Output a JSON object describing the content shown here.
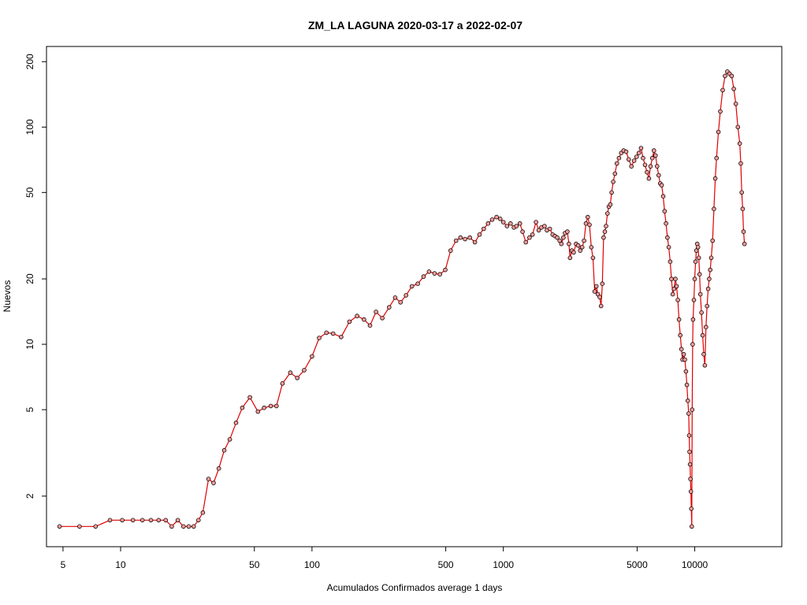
{
  "chart_data": {
    "type": "line",
    "title": "ZM_LA LAGUNA 2020-03-17 a 2022-02-07",
    "xlabel": "Acumulados Confirmados average  1  days",
    "ylabel": "Nuevos",
    "xscale": "log",
    "yscale": "log",
    "xlim": [
      4.1,
      28500
    ],
    "ylim": [
      1.17,
      235
    ],
    "x_ticks": [
      5,
      10,
      50,
      100,
      500,
      1000,
      5000,
      10000
    ],
    "x_tick_labels": [
      "5",
      "10",
      "50",
      "100",
      "500",
      "1000",
      "5000",
      "10000"
    ],
    "y_ticks": [
      2,
      5,
      10,
      20,
      50,
      100,
      200
    ],
    "y_tick_labels": [
      "2",
      "5",
      "10",
      "20",
      "50",
      "100",
      "200"
    ],
    "line_color": "#e00000",
    "point_fill": "#ff9c9c",
    "point_stroke": "#000000",
    "series": [
      {
        "x": [
          4.8,
          6.1,
          7.4,
          8.8,
          10.2,
          11.6,
          13.0,
          14.4,
          15.8,
          17.2,
          18.5,
          19.9,
          21.3,
          22.7,
          24.1,
          25.5,
          26.9,
          28.8,
          30.6,
          32.6,
          34.8,
          37.2,
          40.1,
          43.2,
          47.4,
          52.2,
          56.2,
          60.9,
          65.2,
          70.1,
          77.1,
          83.8,
          91.1,
          100.0,
          109.0,
          119.0,
          129.0,
          142.0,
          157.0,
          172.0,
          187.0,
          201.0,
          216.0,
          233.0,
          253.0,
          272.0,
          290.0,
          310.0,
          333.0,
          357.0,
          383.0,
          409.0,
          437.0,
          466.0,
          497.0,
          530.0,
          566.0,
          597.0,
          631.0,
          668.0,
          710.0,
          750.0,
          790.0,
          832.0,
          874.0,
          922.0,
          963.0,
          1000.0,
          1045.0,
          1090.0,
          1135.0,
          1170.0,
          1220.0,
          1260.0,
          1310.0,
          1370.0,
          1420.0,
          1480.0,
          1530.0,
          1580.0,
          1640.0,
          1690.0,
          1750.0,
          1810.0,
          1860.0,
          1910.0,
          1970.0,
          2010.0,
          2060.0,
          2100.0,
          2160.0,
          2200.0,
          2230.0,
          2280.0,
          2330.0,
          2400.0,
          2460.0,
          2520.0,
          2580.0,
          2640.0,
          2700.0,
          2760.0,
          2820.0,
          2880.0,
          2940.0,
          3000.0,
          3060.0,
          3120.0,
          3190.0,
          3240.0,
          3290.0,
          3340.0,
          3390.0,
          3440.0,
          3500.0,
          3560.0,
          3620.0,
          3680.0,
          3750.0,
          3830.0,
          3920.0,
          4020.0,
          4130.0,
          4250.0,
          4380.0,
          4520.0,
          4670.0,
          4820.0,
          4970.0,
          5110.0,
          5240.0,
          5370.0,
          5500.0,
          5630.0,
          5760.0,
          5880.0,
          6000.0,
          6120.0,
          6240.0,
          6360.0,
          6480.0,
          6600.0,
          6720.0,
          6840.0,
          6960.0,
          7080.0,
          7200.0,
          7320.0,
          7440.0,
          7560.0,
          7680.0,
          7800.0,
          7920.0,
          8040.0,
          8160.0,
          8280.0,
          8400.0,
          8520.0,
          8640.0,
          8760.0,
          8880.0,
          9000.0,
          9100.0,
          9200.0,
          9300.0,
          9350.0,
          9400.0,
          9450.0,
          9500.0,
          9550.0,
          9600.0,
          9650.0,
          9700.0,
          9750.0,
          9800.0,
          9900.0,
          10000.0,
          10100.0,
          10200.0,
          10300.0,
          10400.0,
          10500.0,
          10600.0,
          10700.0,
          10850.0,
          11000.0,
          11150.0,
          11300.0,
          11450.0,
          11600.0,
          11750.0,
          11900.0,
          12050.0,
          12200.0,
          12400.0,
          12600.0,
          12800.0,
          13000.0,
          13300.0,
          13600.0,
          14000.0,
          14400.0,
          14800.0,
          15200.0,
          15600.0,
          16000.0,
          16400.0,
          16800.0,
          17200.0,
          17400.0,
          17600.0,
          17800.0,
          18000.0,
          18200.0
        ],
        "y": [
          1.45,
          1.45,
          1.45,
          1.55,
          1.55,
          1.55,
          1.55,
          1.55,
          1.55,
          1.55,
          1.45,
          1.55,
          1.45,
          1.45,
          1.45,
          1.55,
          1.68,
          2.4,
          2.3,
          2.68,
          3.25,
          3.65,
          4.35,
          5.1,
          5.7,
          4.9,
          5.1,
          5.2,
          5.2,
          6.6,
          7.4,
          7.0,
          7.6,
          8.8,
          10.7,
          11.3,
          11.2,
          10.8,
          12.7,
          13.5,
          13.0,
          12.2,
          14.1,
          13.2,
          14.8,
          16.4,
          15.6,
          16.8,
          18.5,
          19.0,
          20.5,
          21.6,
          21.2,
          21.0,
          22.0,
          27.0,
          30.0,
          31.0,
          30.5,
          31.0,
          29.5,
          32.0,
          34.0,
          36.0,
          37.5,
          38.5,
          37.8,
          36.5,
          35.0,
          36.0,
          34.5,
          35.0,
          36.0,
          33.0,
          29.5,
          31.0,
          32.0,
          36.5,
          33.5,
          34.5,
          35.0,
          33.5,
          34.0,
          32.0,
          31.5,
          31.0,
          30.0,
          29.0,
          31.0,
          32.5,
          33.0,
          29.0,
          25.0,
          27.0,
          26.5,
          29.0,
          28.5,
          27.0,
          28.0,
          30.0,
          36.0,
          38.5,
          35.5,
          28.0,
          25.0,
          17.5,
          18.5,
          17.0,
          16.5,
          15.0,
          19.0,
          31.0,
          33.0,
          35.0,
          40.0,
          43.0,
          44.0,
          50.0,
          56.0,
          61.0,
          68.0,
          72.0,
          76.0,
          78.0,
          77.0,
          71.0,
          66.0,
          70.0,
          73.0,
          76.0,
          80.0,
          72.0,
          67.0,
          62.0,
          58.0,
          66.0,
          72.0,
          78.0,
          74.0,
          66.0,
          60.0,
          55.0,
          54.0,
          48.0,
          41.0,
          36.0,
          31.0,
          28.0,
          24.0,
          20.0,
          17.0,
          18.0,
          20.0,
          18.5,
          16.0,
          13.0,
          11.0,
          9.5,
          8.5,
          9.0,
          8.5,
          7.5,
          6.5,
          5.5,
          4.8,
          3.8,
          3.2,
          2.8,
          2.4,
          2.1,
          1.75,
          1.45,
          5.0,
          10.0,
          13.0,
          16.0,
          20.0,
          24.0,
          27.0,
          29.0,
          28.0,
          25.0,
          21.0,
          17.0,
          14.0,
          11.0,
          9.0,
          8.0,
          12.0,
          15.0,
          18.0,
          20.0,
          22.0,
          25.0,
          30.0,
          42.0,
          58.0,
          72.0,
          95.0,
          118.0,
          148.0,
          172.0,
          180.0,
          176.0,
          172.0,
          150.0,
          128.0,
          100.0,
          84.0,
          68.0,
          50.0,
          42.0,
          33.0,
          29.0
        ]
      }
    ]
  }
}
